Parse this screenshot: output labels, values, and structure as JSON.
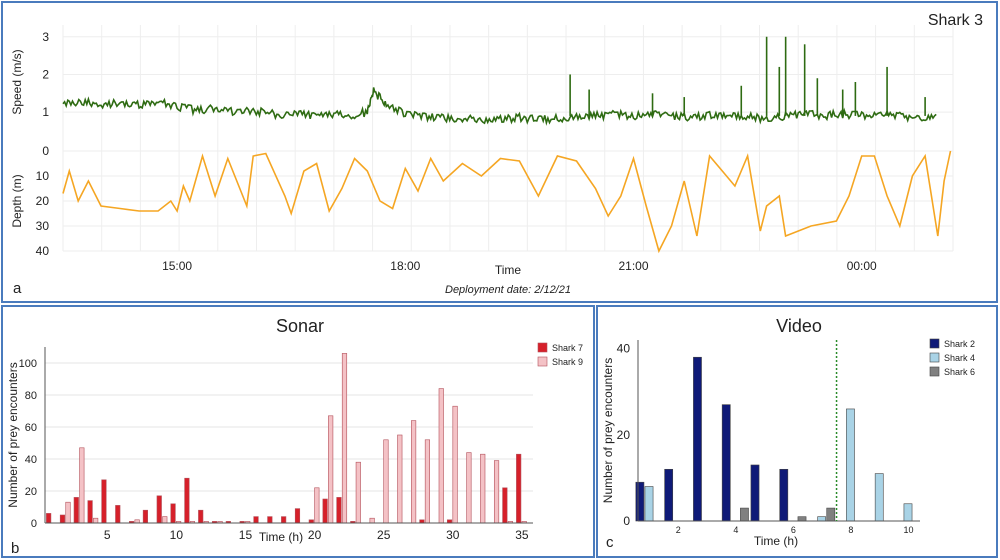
{
  "chart_data": [
    {
      "panel_letter": "a",
      "title": "Shark 3",
      "type": "line",
      "x_label": "Time",
      "x_ticks": [
        "15:00",
        "18:00",
        "21:00",
        "00:00"
      ],
      "footnote": "Deployment date: 2/12/21",
      "speed": {
        "ylabel": "Speed (m/s)",
        "ylim": [
          0.5,
          3.1
        ],
        "yticks": [
          1,
          2,
          3
        ],
        "color": "#2e6b12",
        "series": [
          {
            "x": "13:30",
            "y": 1.2
          },
          {
            "x": "13:45",
            "y": 1.3
          },
          {
            "x": "14:00",
            "y": 1.15
          },
          {
            "x": "14:15",
            "y": 1.25
          },
          {
            "x": "14:30",
            "y": 1.2
          },
          {
            "x": "14:45",
            "y": 1.3
          },
          {
            "x": "15:00",
            "y": 1.15
          },
          {
            "x": "15:15",
            "y": 1.05
          },
          {
            "x": "15:30",
            "y": 1.1
          },
          {
            "x": "15:45",
            "y": 1.0
          },
          {
            "x": "16:00",
            "y": 1.05
          },
          {
            "x": "16:15",
            "y": 0.95
          },
          {
            "x": "16:30",
            "y": 0.95
          },
          {
            "x": "16:45",
            "y": 0.9
          },
          {
            "x": "17:00",
            "y": 0.95
          },
          {
            "x": "17:15",
            "y": 0.9
          },
          {
            "x": "17:30",
            "y": 1.0
          },
          {
            "x": "17:35",
            "y": 1.55
          },
          {
            "x": "17:45",
            "y": 1.2
          },
          {
            "x": "18:00",
            "y": 0.95
          },
          {
            "x": "18:15",
            "y": 0.9
          },
          {
            "x": "18:30",
            "y": 0.85
          },
          {
            "x": "18:45",
            "y": 0.85
          },
          {
            "x": "19:00",
            "y": 0.8
          },
          {
            "x": "19:15",
            "y": 0.8
          },
          {
            "x": "19:30",
            "y": 0.85
          },
          {
            "x": "19:45",
            "y": 0.8
          },
          {
            "x": "20:00",
            "y": 0.85
          },
          {
            "x": "20:15",
            "y": 0.85
          },
          {
            "x": "20:30",
            "y": 0.9
          },
          {
            "x": "20:45",
            "y": 0.95
          },
          {
            "x": "21:00",
            "y": 0.9
          },
          {
            "x": "21:15",
            "y": 0.95
          },
          {
            "x": "21:30",
            "y": 0.9
          },
          {
            "x": "21:45",
            "y": 0.85
          },
          {
            "x": "22:00",
            "y": 0.95
          },
          {
            "x": "22:15",
            "y": 0.9
          },
          {
            "x": "22:30",
            "y": 0.9
          },
          {
            "x": "22:45",
            "y": 0.8
          },
          {
            "x": "23:00",
            "y": 0.9
          },
          {
            "x": "23:15",
            "y": 0.95
          },
          {
            "x": "23:30",
            "y": 0.9
          },
          {
            "x": "23:45",
            "y": 0.95
          },
          {
            "x": "00:00",
            "y": 0.9
          },
          {
            "x": "00:15",
            "y": 0.95
          },
          {
            "x": "00:30",
            "y": 0.9
          },
          {
            "x": "00:45",
            "y": 0.85
          },
          {
            "x": "01:00",
            "y": 0.9
          }
        ],
        "spikes": [
          {
            "x": "20:10",
            "y": 2.0
          },
          {
            "x": "20:25",
            "y": 1.6
          },
          {
            "x": "21:15",
            "y": 1.5
          },
          {
            "x": "21:40",
            "y": 1.4
          },
          {
            "x": "22:25",
            "y": 1.7
          },
          {
            "x": "22:45",
            "y": 3.0
          },
          {
            "x": "22:55",
            "y": 2.2
          },
          {
            "x": "23:00",
            "y": 3.0
          },
          {
            "x": "23:15",
            "y": 2.8
          },
          {
            "x": "23:25",
            "y": 1.9
          },
          {
            "x": "23:45",
            "y": 1.6
          },
          {
            "x": "23:55",
            "y": 1.8
          },
          {
            "x": "00:20",
            "y": 2.2
          },
          {
            "x": "00:50",
            "y": 1.4
          }
        ]
      },
      "depth": {
        "ylabel": "Depth (m)",
        "ylim": [
          0,
          40
        ],
        "yticks": [
          0,
          10,
          20,
          30,
          40
        ],
        "inverted": true,
        "color": "#f5a623",
        "series": [
          {
            "x": "13:30",
            "y": 17
          },
          {
            "x": "13:35",
            "y": 8
          },
          {
            "x": "13:42",
            "y": 20
          },
          {
            "x": "13:50",
            "y": 12
          },
          {
            "x": "14:00",
            "y": 22
          },
          {
            "x": "14:15",
            "y": 23
          },
          {
            "x": "14:30",
            "y": 24
          },
          {
            "x": "14:45",
            "y": 24
          },
          {
            "x": "14:55",
            "y": 20
          },
          {
            "x": "15:00",
            "y": 24
          },
          {
            "x": "15:05",
            "y": 14
          },
          {
            "x": "15:10",
            "y": 20
          },
          {
            "x": "15:20",
            "y": 2
          },
          {
            "x": "15:30",
            "y": 18
          },
          {
            "x": "15:40",
            "y": 3
          },
          {
            "x": "15:55",
            "y": 22
          },
          {
            "x": "16:00",
            "y": 2
          },
          {
            "x": "16:10",
            "y": 1
          },
          {
            "x": "16:25",
            "y": 18
          },
          {
            "x": "16:30",
            "y": 25
          },
          {
            "x": "16:40",
            "y": 8
          },
          {
            "x": "16:50",
            "y": 5
          },
          {
            "x": "17:00",
            "y": 24
          },
          {
            "x": "17:10",
            "y": 15
          },
          {
            "x": "17:20",
            "y": 3
          },
          {
            "x": "17:30",
            "y": 8
          },
          {
            "x": "17:40",
            "y": 20
          },
          {
            "x": "17:50",
            "y": 23
          },
          {
            "x": "18:00",
            "y": 7
          },
          {
            "x": "18:10",
            "y": 16
          },
          {
            "x": "18:20",
            "y": 3
          },
          {
            "x": "18:30",
            "y": 12
          },
          {
            "x": "18:45",
            "y": 5
          },
          {
            "x": "19:00",
            "y": 10
          },
          {
            "x": "19:15",
            "y": 3
          },
          {
            "x": "19:30",
            "y": 4
          },
          {
            "x": "19:45",
            "y": 18
          },
          {
            "x": "20:00",
            "y": 2
          },
          {
            "x": "20:15",
            "y": 4
          },
          {
            "x": "20:30",
            "y": 15
          },
          {
            "x": "20:40",
            "y": 26
          },
          {
            "x": "20:50",
            "y": 18
          },
          {
            "x": "21:00",
            "y": 3
          },
          {
            "x": "21:10",
            "y": 22
          },
          {
            "x": "21:20",
            "y": 40
          },
          {
            "x": "21:30",
            "y": 30
          },
          {
            "x": "21:40",
            "y": 12
          },
          {
            "x": "21:50",
            "y": 34
          },
          {
            "x": "22:00",
            "y": 2
          },
          {
            "x": "22:10",
            "y": 8
          },
          {
            "x": "22:20",
            "y": 14
          },
          {
            "x": "22:30",
            "y": 2
          },
          {
            "x": "22:40",
            "y": 32
          },
          {
            "x": "22:45",
            "y": 22
          },
          {
            "x": "22:55",
            "y": 18
          },
          {
            "x": "23:00",
            "y": 34
          },
          {
            "x": "23:20",
            "y": 30
          },
          {
            "x": "23:40",
            "y": 28
          },
          {
            "x": "23:50",
            "y": 18
          },
          {
            "x": "00:00",
            "y": 2
          },
          {
            "x": "00:10",
            "y": 2
          },
          {
            "x": "00:20",
            "y": 18
          },
          {
            "x": "00:30",
            "y": 30
          },
          {
            "x": "00:40",
            "y": 10
          },
          {
            "x": "00:50",
            "y": 2
          },
          {
            "x": "01:00",
            "y": 34
          },
          {
            "x": "01:05",
            "y": 12
          },
          {
            "x": "01:10",
            "y": 0
          }
        ]
      }
    },
    {
      "panel_letter": "b",
      "title": "Sonar",
      "type": "bar",
      "xlabel": "Time (h)",
      "ylabel": "Number of prey encounters",
      "ylim": [
        0,
        110
      ],
      "yticks": [
        0,
        20,
        40,
        60,
        80,
        100
      ],
      "xticks": [
        5,
        10,
        15,
        20,
        25,
        30,
        35
      ],
      "categories": [
        1,
        2,
        3,
        4,
        5,
        6,
        7,
        8,
        9,
        10,
        11,
        12,
        13,
        14,
        15,
        16,
        17,
        18,
        19,
        20,
        21,
        22,
        23,
        24,
        25,
        26,
        27,
        28,
        29,
        30,
        31,
        32,
        33,
        34,
        35
      ],
      "series": [
        {
          "name": "Shark 7",
          "color": "#d6202a",
          "values": [
            6,
            5,
            16,
            14,
            27,
            11,
            1,
            8,
            17,
            12,
            28,
            8,
            1,
            1,
            1,
            4,
            4,
            4,
            9,
            2,
            15,
            16,
            1,
            0,
            0,
            0,
            0,
            2,
            0,
            2,
            0,
            0,
            0,
            22,
            43
          ]
        },
        {
          "name": "Shark 9",
          "color": "#f4c2c6",
          "values": [
            0,
            13,
            47,
            3,
            0,
            0,
            2,
            0,
            4,
            1,
            1,
            1,
            1,
            0,
            1,
            0,
            0,
            0,
            0,
            22,
            67,
            106,
            38,
            3,
            52,
            55,
            64,
            52,
            84,
            73,
            44,
            43,
            39,
            1,
            1
          ]
        }
      ]
    },
    {
      "panel_letter": "c",
      "title": "Video",
      "type": "bar",
      "xlabel": "Time (h)",
      "ylabel": "Number of prey encounters",
      "ylim": [
        0,
        42
      ],
      "yticks": [
        0,
        20,
        40
      ],
      "xticks": [
        2,
        4,
        6,
        8,
        10
      ],
      "categories": [
        1,
        2,
        3,
        4,
        5,
        6,
        7,
        8,
        9,
        10
      ],
      "divider_x": 7.5,
      "series": [
        {
          "name": "Shark 2",
          "color": "#0f1a78",
          "values": [
            9,
            12,
            38,
            27,
            13,
            12,
            0,
            0,
            0,
            0
          ]
        },
        {
          "name": "Shark 4",
          "color": "#a9d3e6",
          "values": [
            8,
            0,
            0,
            0,
            0,
            0,
            1,
            26,
            11,
            4
          ]
        },
        {
          "name": "Shark 6",
          "color": "#808080",
          "values": [
            0,
            0,
            0,
            3,
            0,
            1,
            3,
            0,
            0,
            0
          ]
        }
      ]
    }
  ]
}
